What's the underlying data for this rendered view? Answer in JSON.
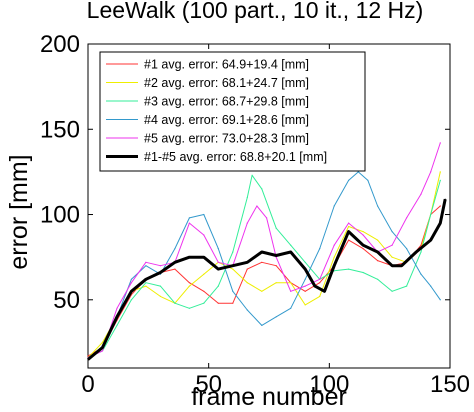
{
  "chart_data": {
    "type": "line",
    "title": "LeeWalk (100 part., 10 it., 12 Hz)",
    "xlabel": "frame number",
    "ylabel": "error [mm]",
    "xlim": [
      0,
      150
    ],
    "ylim": [
      10,
      200
    ],
    "xticks": [
      0,
      50,
      100,
      150
    ],
    "yticks": [
      50,
      100,
      150,
      200
    ],
    "grid": false,
    "legend_position": "top-left",
    "series": [
      {
        "name": "#1 avg. error: 64.9+19.4 [mm]",
        "color": "#ff3333",
        "width": 1,
        "points": [
          [
            0,
            17
          ],
          [
            6,
            22
          ],
          [
            12,
            38
          ],
          [
            18,
            53
          ],
          [
            24,
            62
          ],
          [
            30,
            66
          ],
          [
            36,
            68
          ],
          [
            42,
            60
          ],
          [
            48,
            55
          ],
          [
            54,
            48
          ],
          [
            60,
            48
          ],
          [
            66,
            68
          ],
          [
            72,
            72
          ],
          [
            78,
            70
          ],
          [
            84,
            60
          ],
          [
            90,
            55
          ],
          [
            96,
            60
          ],
          [
            102,
            70
          ],
          [
            108,
            85
          ],
          [
            114,
            80
          ],
          [
            120,
            73
          ],
          [
            126,
            70
          ],
          [
            132,
            72
          ],
          [
            138,
            82
          ],
          [
            142,
            100
          ],
          [
            146,
            105
          ]
        ]
      },
      {
        "name": "#2 avg. error: 68.1+24.7 [mm]",
        "color": "#eeee00",
        "width": 1,
        "points": [
          [
            0,
            16
          ],
          [
            6,
            25
          ],
          [
            12,
            40
          ],
          [
            18,
            55
          ],
          [
            24,
            58
          ],
          [
            30,
            52
          ],
          [
            36,
            48
          ],
          [
            42,
            58
          ],
          [
            48,
            65
          ],
          [
            54,
            72
          ],
          [
            60,
            68
          ],
          [
            66,
            60
          ],
          [
            72,
            55
          ],
          [
            78,
            60
          ],
          [
            84,
            60
          ],
          [
            90,
            47
          ],
          [
            96,
            52
          ],
          [
            102,
            75
          ],
          [
            108,
            93
          ],
          [
            114,
            90
          ],
          [
            120,
            85
          ],
          [
            126,
            75
          ],
          [
            132,
            72
          ],
          [
            138,
            80
          ],
          [
            142,
            100
          ],
          [
            146,
            125
          ]
        ]
      },
      {
        "name": "#3 avg. error: 68.7+29.8 [mm]",
        "color": "#33ee99",
        "width": 1,
        "points": [
          [
            0,
            16
          ],
          [
            6,
            20
          ],
          [
            12,
            35
          ],
          [
            18,
            50
          ],
          [
            24,
            60
          ],
          [
            30,
            58
          ],
          [
            36,
            48
          ],
          [
            42,
            45
          ],
          [
            48,
            48
          ],
          [
            54,
            58
          ],
          [
            60,
            78
          ],
          [
            66,
            110
          ],
          [
            68,
            123
          ],
          [
            72,
            115
          ],
          [
            78,
            92
          ],
          [
            84,
            82
          ],
          [
            90,
            72
          ],
          [
            96,
            62
          ],
          [
            102,
            67
          ],
          [
            108,
            68
          ],
          [
            114,
            66
          ],
          [
            120,
            62
          ],
          [
            126,
            55
          ],
          [
            132,
            58
          ],
          [
            138,
            78
          ],
          [
            142,
            100
          ],
          [
            146,
            120
          ]
        ]
      },
      {
        "name": "#4 avg. error: 69.1+28.6 [mm]",
        "color": "#3399cc",
        "width": 1,
        "points": [
          [
            0,
            16
          ],
          [
            6,
            22
          ],
          [
            12,
            40
          ],
          [
            18,
            62
          ],
          [
            24,
            70
          ],
          [
            30,
            65
          ],
          [
            36,
            80
          ],
          [
            42,
            98
          ],
          [
            48,
            100
          ],
          [
            54,
            80
          ],
          [
            60,
            55
          ],
          [
            66,
            44
          ],
          [
            72,
            35
          ],
          [
            78,
            40
          ],
          [
            84,
            45
          ],
          [
            90,
            62
          ],
          [
            96,
            80
          ],
          [
            102,
            105
          ],
          [
            108,
            120
          ],
          [
            112,
            125
          ],
          [
            116,
            120
          ],
          [
            120,
            105
          ],
          [
            126,
            90
          ],
          [
            132,
            80
          ],
          [
            138,
            65
          ],
          [
            142,
            58
          ],
          [
            146,
            50
          ]
        ]
      },
      {
        "name": "#5 avg. error: 73.0+28.3 [mm]",
        "color": "#ee33ee",
        "width": 1,
        "points": [
          [
            0,
            16
          ],
          [
            6,
            20
          ],
          [
            12,
            45
          ],
          [
            18,
            60
          ],
          [
            24,
            72
          ],
          [
            30,
            70
          ],
          [
            36,
            72
          ],
          [
            42,
            95
          ],
          [
            48,
            88
          ],
          [
            54,
            72
          ],
          [
            60,
            70
          ],
          [
            66,
            95
          ],
          [
            70,
            105
          ],
          [
            74,
            98
          ],
          [
            78,
            75
          ],
          [
            84,
            55
          ],
          [
            90,
            58
          ],
          [
            96,
            62
          ],
          [
            102,
            82
          ],
          [
            108,
            95
          ],
          [
            114,
            88
          ],
          [
            120,
            78
          ],
          [
            126,
            82
          ],
          [
            132,
            98
          ],
          [
            138,
            112
          ],
          [
            142,
            125
          ],
          [
            146,
            142
          ]
        ]
      },
      {
        "name": "#1-#5 avg. error: 68.8+20.1 [mm]",
        "color": "#000000",
        "width": 3,
        "points": [
          [
            0,
            15
          ],
          [
            6,
            22
          ],
          [
            12,
            40
          ],
          [
            18,
            55
          ],
          [
            24,
            62
          ],
          [
            30,
            66
          ],
          [
            36,
            72
          ],
          [
            42,
            75
          ],
          [
            48,
            75
          ],
          [
            54,
            68
          ],
          [
            60,
            70
          ],
          [
            66,
            72
          ],
          [
            72,
            78
          ],
          [
            78,
            76
          ],
          [
            84,
            78
          ],
          [
            90,
            68
          ],
          [
            94,
            58
          ],
          [
            98,
            55
          ],
          [
            102,
            70
          ],
          [
            108,
            90
          ],
          [
            114,
            82
          ],
          [
            120,
            78
          ],
          [
            126,
            70
          ],
          [
            130,
            70
          ],
          [
            136,
            78
          ],
          [
            142,
            85
          ],
          [
            146,
            95
          ],
          [
            148,
            109
          ]
        ]
      }
    ]
  }
}
